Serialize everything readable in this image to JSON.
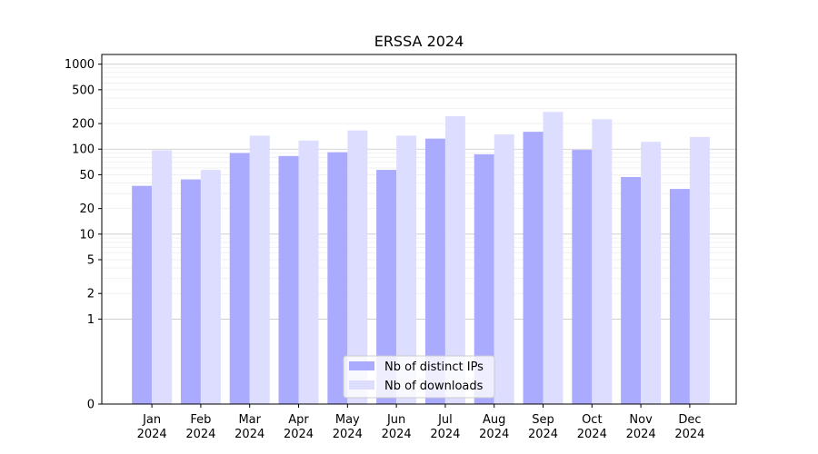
{
  "chart_data": {
    "type": "bar",
    "title": "ERSSA 2024",
    "xlabel": "",
    "ylabel": "",
    "y_scale": "symlog",
    "ylim": [
      0,
      1300
    ],
    "y_ticks": [
      0,
      1,
      2,
      5,
      10,
      20,
      50,
      100,
      200,
      500,
      1000
    ],
    "grid": "horizontal",
    "legend_position": "bottom-center",
    "categories": [
      [
        "Jan",
        "2024"
      ],
      [
        "Feb",
        "2024"
      ],
      [
        "Mar",
        "2024"
      ],
      [
        "Apr",
        "2024"
      ],
      [
        "May",
        "2024"
      ],
      [
        "Jun",
        "2024"
      ],
      [
        "Jul",
        "2024"
      ],
      [
        "Aug",
        "2024"
      ],
      [
        "Sep",
        "2024"
      ],
      [
        "Oct",
        "2024"
      ],
      [
        "Nov",
        "2024"
      ],
      [
        "Dec",
        "2024"
      ]
    ],
    "series": [
      {
        "name": "Nb of distinct IPs",
        "color": "#aaaaff",
        "values": [
          37,
          44,
          90,
          83,
          92,
          57,
          133,
          87,
          160,
          98,
          47,
          34
        ]
      },
      {
        "name": "Nb of downloads",
        "color": "#ddddff",
        "values": [
          97,
          57,
          144,
          126,
          166,
          144,
          244,
          149,
          274,
          225,
          122,
          139
        ]
      }
    ]
  }
}
